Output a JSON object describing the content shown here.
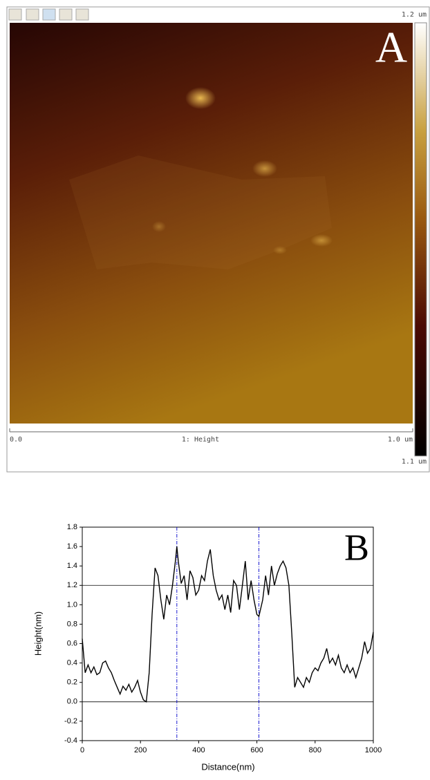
{
  "afm_image": {
    "panel_label": "A",
    "scale_top": "1.2 um",
    "scale_bottom": "1.1 um",
    "axis_start": "0.0",
    "axis_end": "1.0 um",
    "channel": "1: Height"
  },
  "chart_data": {
    "type": "line",
    "panel_label": "B",
    "xlabel": "Distance(nm)",
    "ylabel": "Height(nm)",
    "x": [
      0,
      10,
      20,
      30,
      40,
      50,
      60,
      70,
      80,
      90,
      100,
      110,
      120,
      130,
      140,
      150,
      160,
      170,
      180,
      190,
      200,
      210,
      220,
      230,
      240,
      250,
      260,
      270,
      280,
      290,
      300,
      310,
      320,
      325,
      330,
      340,
      350,
      360,
      370,
      380,
      390,
      400,
      410,
      420,
      430,
      440,
      450,
      460,
      470,
      480,
      490,
      500,
      510,
      520,
      530,
      540,
      550,
      560,
      570,
      580,
      590,
      600,
      607,
      620,
      630,
      640,
      650,
      660,
      670,
      680,
      690,
      700,
      710,
      720,
      730,
      740,
      750,
      760,
      770,
      780,
      790,
      800,
      810,
      820,
      830,
      840,
      850,
      860,
      870,
      880,
      890,
      900,
      910,
      920,
      930,
      940,
      950,
      960,
      970,
      980,
      990,
      1000
    ],
    "values": [
      0.65,
      0.3,
      0.38,
      0.3,
      0.36,
      0.28,
      0.3,
      0.4,
      0.42,
      0.35,
      0.3,
      0.22,
      0.15,
      0.08,
      0.16,
      0.12,
      0.18,
      0.1,
      0.15,
      0.22,
      0.1,
      0.02,
      0.0,
      0.3,
      0.9,
      1.38,
      1.3,
      1.05,
      0.85,
      1.1,
      1.0,
      1.2,
      1.45,
      1.6,
      1.45,
      1.22,
      1.3,
      1.05,
      1.35,
      1.28,
      1.1,
      1.15,
      1.3,
      1.25,
      1.45,
      1.57,
      1.3,
      1.15,
      1.05,
      1.1,
      0.95,
      1.1,
      0.92,
      1.25,
      1.2,
      0.95,
      1.2,
      1.45,
      1.05,
      1.25,
      1.05,
      0.9,
      0.88,
      1.05,
      1.3,
      1.1,
      1.4,
      1.2,
      1.32,
      1.4,
      1.45,
      1.38,
      1.2,
      0.7,
      0.15,
      0.25,
      0.2,
      0.15,
      0.25,
      0.2,
      0.3,
      0.35,
      0.32,
      0.4,
      0.45,
      0.55,
      0.4,
      0.45,
      0.38,
      0.48,
      0.35,
      0.3,
      0.38,
      0.3,
      0.35,
      0.25,
      0.35,
      0.45,
      0.62,
      0.5,
      0.55,
      0.72
    ],
    "color": "#000000",
    "xlim": [
      0,
      1000
    ],
    "xticks": [
      0,
      200,
      400,
      600,
      800,
      1000
    ],
    "ylim": [
      -0.4,
      1.8
    ],
    "yticks": [
      -0.4,
      -0.2,
      {
        "value": 0,
        "label": "0.0"
      },
      0.2,
      0.4,
      0.6,
      0.8,
      {
        "value": 1,
        "label": "1.0"
      },
      1.2,
      1.4,
      1.6,
      1.8
    ],
    "hlines": [
      0,
      1.2
    ],
    "hline_color": "#000000",
    "vlines": [
      325,
      607
    ],
    "vline_color": "#0000cc",
    "grid": false
  }
}
